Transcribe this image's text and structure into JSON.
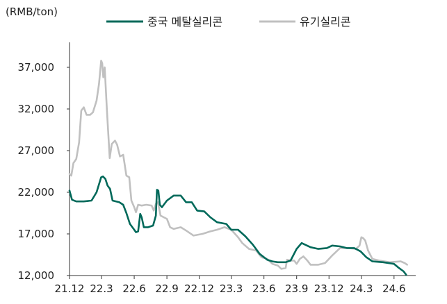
{
  "chart_data": {
    "type": "line",
    "unit_label": "(RMB/ton)",
    "title": "",
    "xlabel": "",
    "ylabel": "",
    "ylim": [
      12000,
      40000
    ],
    "yticks": [
      12000,
      17000,
      22000,
      27000,
      32000,
      37000
    ],
    "ytick_labels": [
      "12,000",
      "17,000",
      "22,000",
      "27,000",
      "32,000",
      "37,000"
    ],
    "x_range": [
      "2021-12-01",
      "2024-08-01"
    ],
    "xticks": [
      "2021-12-01",
      "2022-03-01",
      "2022-06-01",
      "2022-09-01",
      "2022-12-01",
      "2023-03-01",
      "2023-06-01",
      "2023-09-01",
      "2023-12-01",
      "2024-03-01",
      "2024-06-01"
    ],
    "xtick_labels": [
      "21.12",
      "22.3",
      "22.6",
      "22.9",
      "22.12",
      "23.3",
      "23.6",
      "23.9",
      "23.12",
      "24.3",
      "24.6"
    ],
    "grid": false,
    "legend_position": "top",
    "series": [
      {
        "name": "중국 메탈실리콘",
        "color": "#00695a",
        "points": [
          [
            "2021-12-01",
            22200
          ],
          [
            "2021-12-08",
            21100
          ],
          [
            "2021-12-20",
            20900
          ],
          [
            "2022-01-10",
            20900
          ],
          [
            "2022-02-01",
            21000
          ],
          [
            "2022-02-15",
            22000
          ],
          [
            "2022-02-28",
            23800
          ],
          [
            "2022-03-05",
            23900
          ],
          [
            "2022-03-12",
            23600
          ],
          [
            "2022-03-18",
            22800
          ],
          [
            "2022-03-25",
            22400
          ],
          [
            "2022-04-01",
            21000
          ],
          [
            "2022-04-20",
            20800
          ],
          [
            "2022-05-01",
            20500
          ],
          [
            "2022-05-10",
            19500
          ],
          [
            "2022-05-20",
            18200
          ],
          [
            "2022-06-01",
            17500
          ],
          [
            "2022-06-06",
            17200
          ],
          [
            "2022-06-12",
            17300
          ],
          [
            "2022-06-18",
            19400
          ],
          [
            "2022-06-22",
            19000
          ],
          [
            "2022-06-28",
            17800
          ],
          [
            "2022-07-10",
            17800
          ],
          [
            "2022-07-24",
            18000
          ],
          [
            "2022-08-01",
            19200
          ],
          [
            "2022-08-04",
            22300
          ],
          [
            "2022-08-08",
            22200
          ],
          [
            "2022-08-12",
            20500
          ],
          [
            "2022-08-18",
            20200
          ],
          [
            "2022-09-01",
            21000
          ],
          [
            "2022-09-20",
            21600
          ],
          [
            "2022-10-10",
            21600
          ],
          [
            "2022-10-25",
            20800
          ],
          [
            "2022-11-10",
            20800
          ],
          [
            "2022-11-25",
            19800
          ],
          [
            "2022-12-15",
            19700
          ],
          [
            "2023-01-01",
            19000
          ],
          [
            "2023-01-20",
            18400
          ],
          [
            "2023-02-15",
            18200
          ],
          [
            "2023-03-01",
            17500
          ],
          [
            "2023-03-20",
            17500
          ],
          [
            "2023-04-10",
            16700
          ],
          [
            "2023-05-01",
            15700
          ],
          [
            "2023-05-20",
            14600
          ],
          [
            "2023-06-10",
            13900
          ],
          [
            "2023-06-25",
            13700
          ],
          [
            "2023-07-10",
            13600
          ],
          [
            "2023-08-01",
            13600
          ],
          [
            "2023-08-15",
            13800
          ],
          [
            "2023-09-01",
            15200
          ],
          [
            "2023-09-15",
            15900
          ],
          [
            "2023-10-10",
            15400
          ],
          [
            "2023-11-01",
            15200
          ],
          [
            "2023-11-25",
            15300
          ],
          [
            "2023-12-10",
            15600
          ],
          [
            "2024-01-01",
            15500
          ],
          [
            "2024-01-20",
            15300
          ],
          [
            "2024-02-10",
            15300
          ],
          [
            "2024-02-28",
            14900
          ],
          [
            "2024-03-15",
            14200
          ],
          [
            "2024-04-01",
            13700
          ],
          [
            "2024-05-01",
            13600
          ],
          [
            "2024-06-01",
            13400
          ],
          [
            "2024-06-15",
            12900
          ],
          [
            "2024-06-28",
            12500
          ],
          [
            "2024-07-05",
            12100
          ]
        ]
      },
      {
        "name": "유기실리콘",
        "color": "#c0c0c0",
        "points": [
          [
            "2021-12-01",
            24200
          ],
          [
            "2021-12-06",
            24000
          ],
          [
            "2021-12-12",
            25500
          ],
          [
            "2021-12-20",
            26000
          ],
          [
            "2021-12-28",
            28000
          ],
          [
            "2022-01-03",
            31800
          ],
          [
            "2022-01-10",
            32200
          ],
          [
            "2022-01-18",
            31300
          ],
          [
            "2022-01-28",
            31300
          ],
          [
            "2022-02-05",
            31600
          ],
          [
            "2022-02-15",
            33000
          ],
          [
            "2022-02-22",
            35000
          ],
          [
            "2022-02-28",
            37800
          ],
          [
            "2022-03-03",
            37500
          ],
          [
            "2022-03-06",
            35800
          ],
          [
            "2022-03-10",
            37000
          ],
          [
            "2022-03-16",
            32000
          ],
          [
            "2022-03-24",
            26100
          ],
          [
            "2022-03-30",
            27800
          ],
          [
            "2022-04-08",
            28200
          ],
          [
            "2022-04-14",
            27700
          ],
          [
            "2022-04-22",
            26300
          ],
          [
            "2022-05-01",
            26500
          ],
          [
            "2022-05-10",
            24000
          ],
          [
            "2022-05-18",
            23800
          ],
          [
            "2022-05-24",
            21000
          ],
          [
            "2022-06-01",
            20200
          ],
          [
            "2022-06-06",
            19600
          ],
          [
            "2022-06-12",
            20500
          ],
          [
            "2022-06-22",
            20400
          ],
          [
            "2022-07-05",
            20500
          ],
          [
            "2022-07-20",
            20400
          ],
          [
            "2022-07-26",
            19800
          ],
          [
            "2022-08-01",
            20600
          ],
          [
            "2022-08-07",
            20800
          ],
          [
            "2022-08-14",
            19200
          ],
          [
            "2022-09-01",
            18800
          ],
          [
            "2022-09-10",
            17800
          ],
          [
            "2022-09-20",
            17600
          ],
          [
            "2022-10-10",
            17800
          ],
          [
            "2022-10-25",
            17400
          ],
          [
            "2022-11-15",
            16800
          ],
          [
            "2022-12-10",
            17000
          ],
          [
            "2023-01-01",
            17300
          ],
          [
            "2023-01-20",
            17500
          ],
          [
            "2023-02-10",
            17800
          ],
          [
            "2023-03-01",
            17500
          ],
          [
            "2023-03-20",
            16600
          ],
          [
            "2023-04-01",
            15900
          ],
          [
            "2023-04-20",
            15200
          ],
          [
            "2023-05-10",
            15000
          ],
          [
            "2023-05-25",
            14200
          ],
          [
            "2023-06-10",
            14000
          ],
          [
            "2023-06-25",
            13400
          ],
          [
            "2023-07-10",
            13200
          ],
          [
            "2023-07-20",
            12800
          ],
          [
            "2023-08-01",
            12900
          ],
          [
            "2023-08-05",
            13900
          ],
          [
            "2023-08-15",
            13800
          ],
          [
            "2023-08-25",
            13800
          ],
          [
            "2023-09-01",
            13400
          ],
          [
            "2023-09-10",
            14000
          ],
          [
            "2023-09-20",
            14300
          ],
          [
            "2023-10-01",
            13800
          ],
          [
            "2023-10-10",
            13300
          ],
          [
            "2023-11-01",
            13300
          ],
          [
            "2023-11-20",
            13500
          ],
          [
            "2023-12-10",
            14400
          ],
          [
            "2024-01-01",
            15300
          ],
          [
            "2024-01-25",
            15300
          ],
          [
            "2024-02-15",
            15200
          ],
          [
            "2024-02-25",
            15600
          ],
          [
            "2024-03-01",
            16600
          ],
          [
            "2024-03-06",
            16500
          ],
          [
            "2024-03-12",
            16200
          ],
          [
            "2024-03-20",
            15000
          ],
          [
            "2024-04-01",
            14000
          ],
          [
            "2024-04-20",
            13800
          ],
          [
            "2024-05-20",
            13600
          ],
          [
            "2024-06-20",
            13700
          ],
          [
            "2024-07-01",
            13500
          ],
          [
            "2024-07-08",
            13300
          ]
        ]
      }
    ]
  }
}
